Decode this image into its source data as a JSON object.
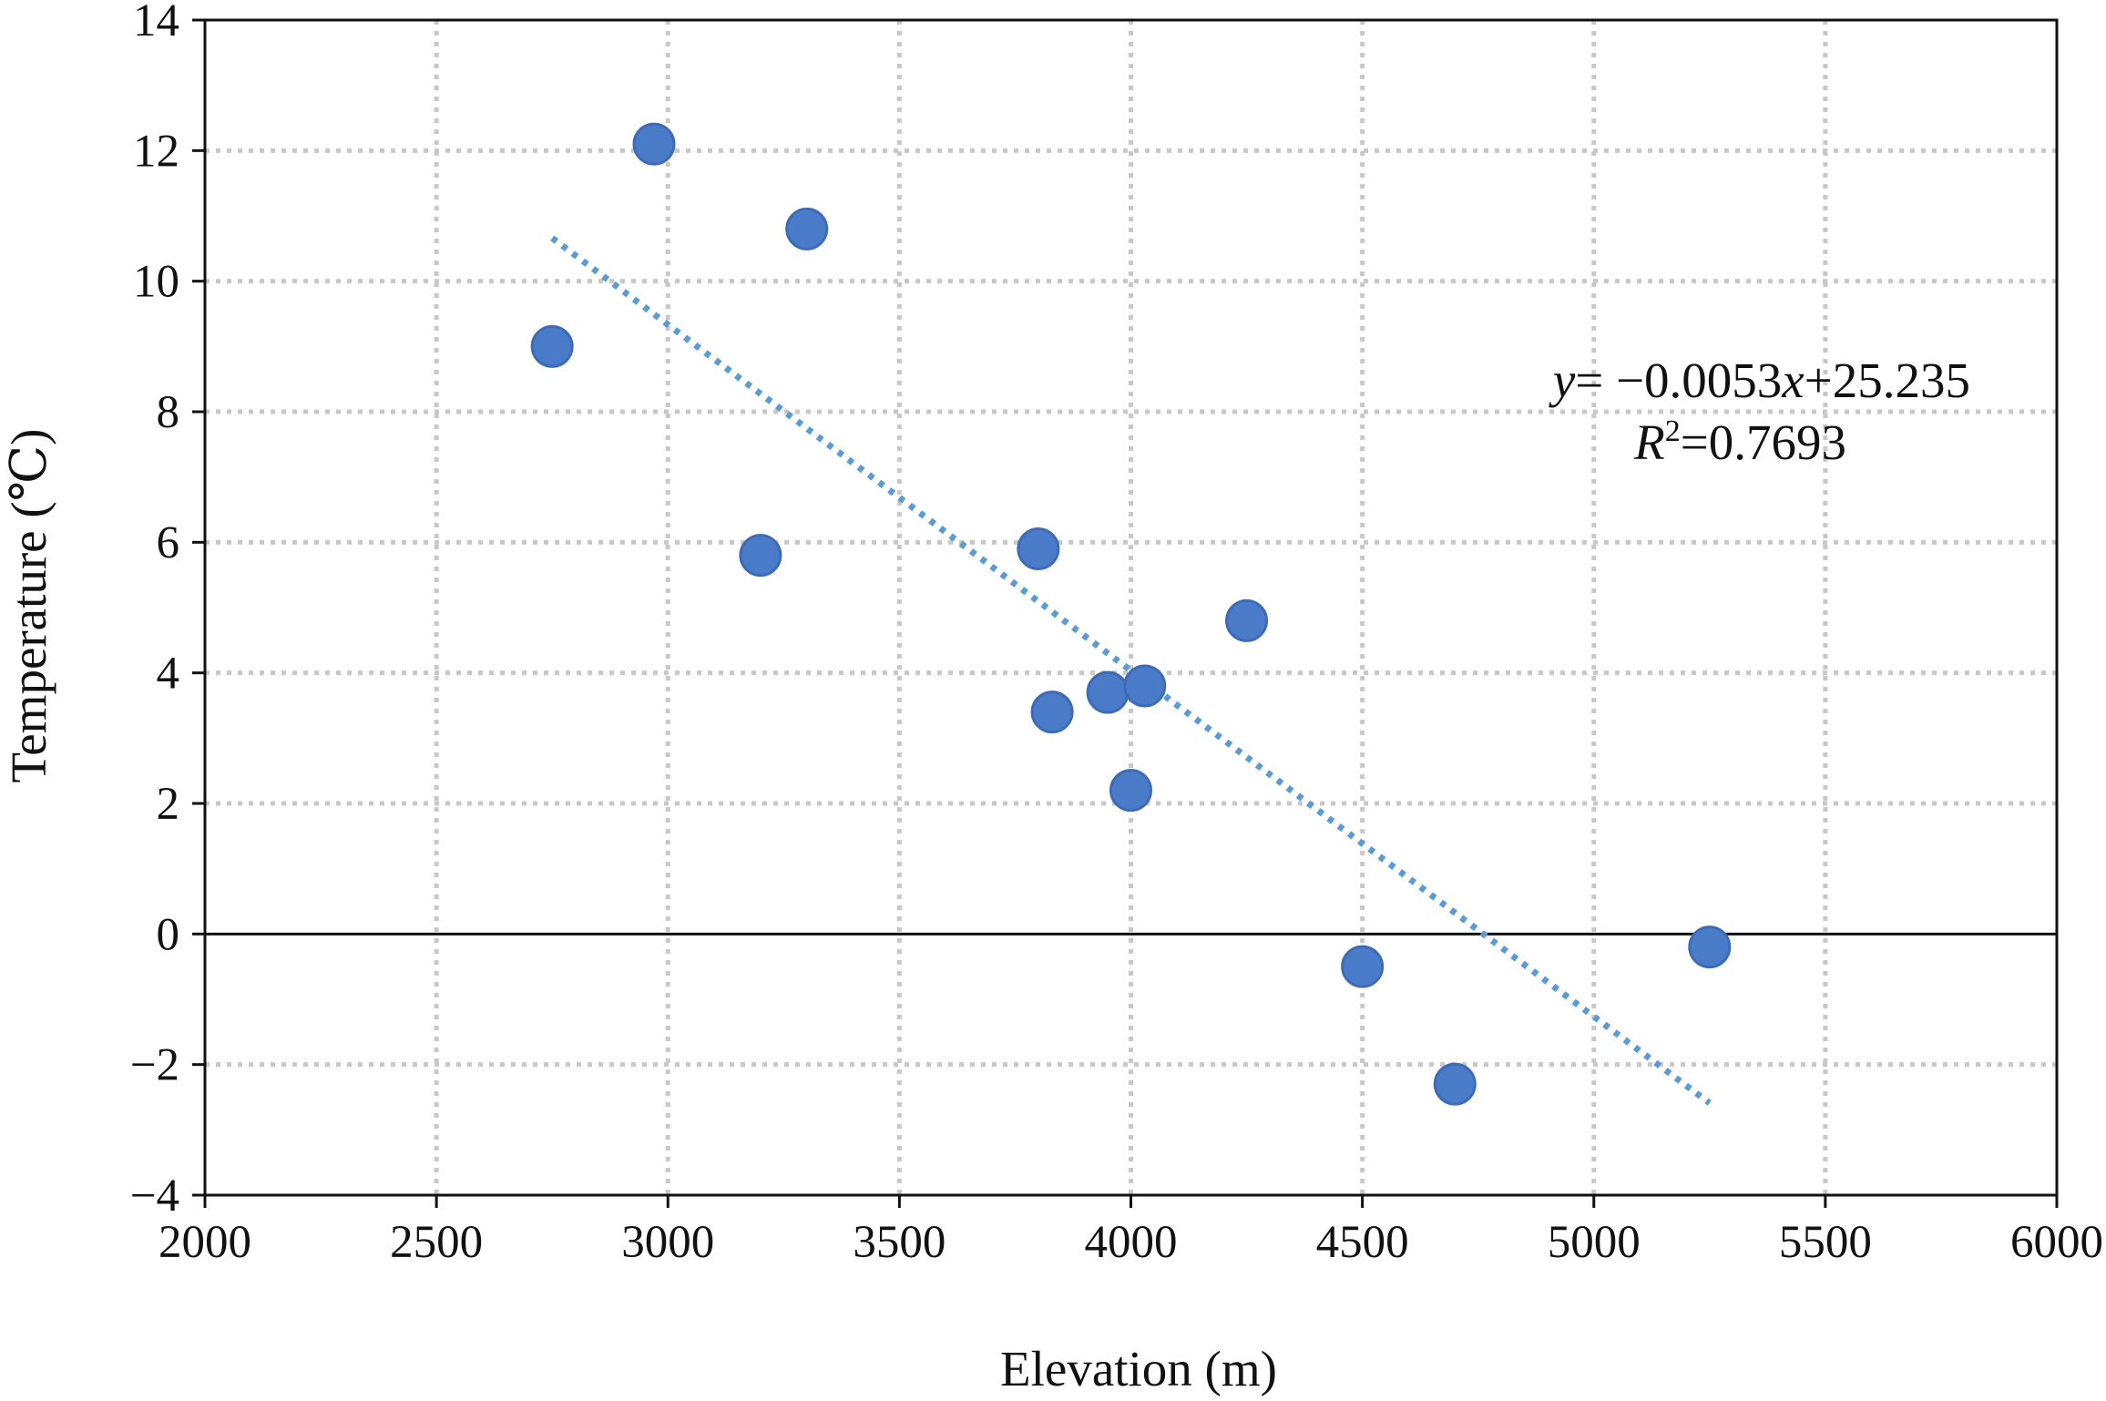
{
  "chart_data": {
    "type": "scatter",
    "title": "",
    "xlabel": "Elevation (m)",
    "ylabel": "Temperature (℃)",
    "xlim": [
      2000,
      6000
    ],
    "ylim": [
      -4,
      14
    ],
    "x_ticks": [
      2000,
      2500,
      3000,
      3500,
      4000,
      4500,
      5000,
      5500,
      6000
    ],
    "y_ticks": [
      14,
      12,
      10,
      8,
      6,
      4,
      2,
      0,
      -2,
      -4
    ],
    "x_tick_labels": [
      "2000",
      "2500",
      "3000",
      "3500",
      "4000",
      "4500",
      "5000",
      "5500",
      "6000"
    ],
    "y_tick_labels": [
      "14",
      "12",
      "10",
      "8",
      "6",
      "4",
      "2",
      "0",
      "−2",
      "−4"
    ],
    "grid": true,
    "series": [
      {
        "points": [
          {
            "x": 2750,
            "y": 9.0
          },
          {
            "x": 2970,
            "y": 12.1
          },
          {
            "x": 3200,
            "y": 5.8
          },
          {
            "x": 3300,
            "y": 10.8
          },
          {
            "x": 3800,
            "y": 5.9
          },
          {
            "x": 3830,
            "y": 3.4
          },
          {
            "x": 3950,
            "y": 3.7
          },
          {
            "x": 4000,
            "y": 2.2
          },
          {
            "x": 4030,
            "y": 3.8
          },
          {
            "x": 4250,
            "y": 4.8
          },
          {
            "x": 4500,
            "y": -0.5
          },
          {
            "x": 4700,
            "y": -2.3
          },
          {
            "x": 5250,
            "y": -0.2
          }
        ],
        "color": "#4a7bc8"
      }
    ],
    "trendline": {
      "type": "linear",
      "slope": -0.0053,
      "intercept": 25.235,
      "x_range": [
        2750,
        5250
      ],
      "color": "#5b9bd5"
    },
    "annotation": {
      "eq_y": "y",
      "eq_rest": "= −0.0053",
      "eq_x": "x",
      "eq_const": "+25.235",
      "r2_R": "R",
      "r2_sup": "2",
      "r2_rest": "=0.7693"
    }
  }
}
